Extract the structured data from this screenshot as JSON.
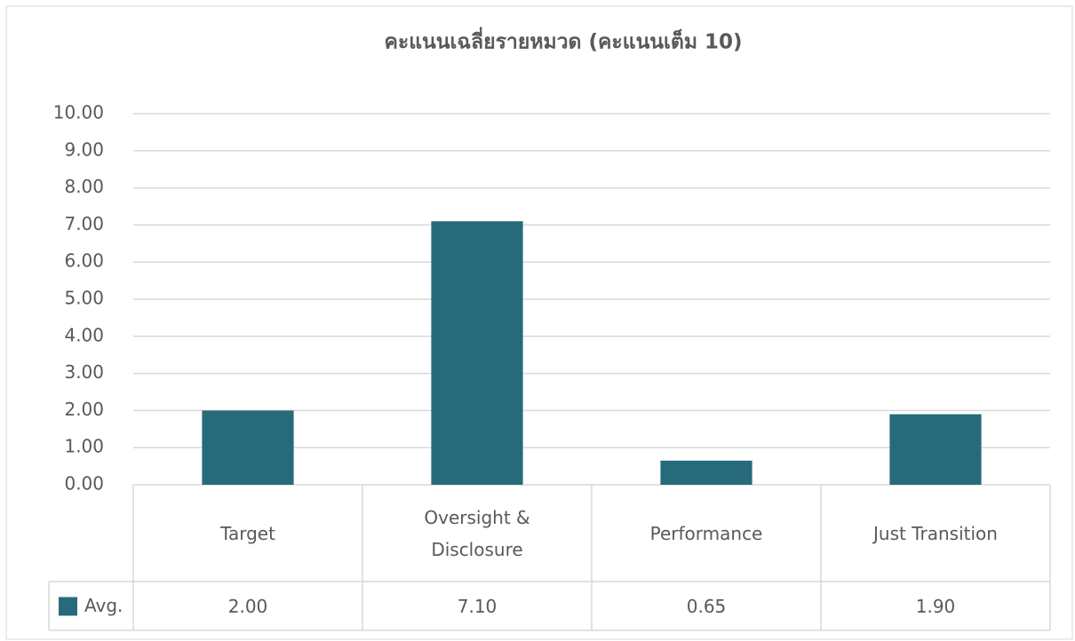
{
  "chart_data": {
    "type": "bar",
    "title": "คะแนนเฉลี่ยรายหมวด (คะแนนเต็ม 10)",
    "categories": [
      "Target",
      "Oversight & Disclosure",
      "Performance",
      "Just Transition"
    ],
    "series": [
      {
        "name": "Avg.",
        "color": "#276a7c",
        "values": [
          2.0,
          7.1,
          0.65,
          1.9
        ],
        "value_labels": [
          "2.00",
          "7.10",
          "0.65",
          "1.90"
        ]
      }
    ],
    "ylim": [
      0,
      10
    ],
    "yticks": [
      {
        "value": 0,
        "label": "0.00"
      },
      {
        "value": 1,
        "label": "1.00"
      },
      {
        "value": 2,
        "label": "2.00"
      },
      {
        "value": 3,
        "label": "3.00"
      },
      {
        "value": 4,
        "label": "4.00"
      },
      {
        "value": 5,
        "label": "5.00"
      },
      {
        "value": 6,
        "label": "6.00"
      },
      {
        "value": 7,
        "label": "7.00"
      },
      {
        "value": 8,
        "label": "8.00"
      },
      {
        "value": 9,
        "label": "9.00"
      },
      {
        "value": 10,
        "label": "10.00"
      }
    ],
    "grid": true,
    "data_table": true
  }
}
